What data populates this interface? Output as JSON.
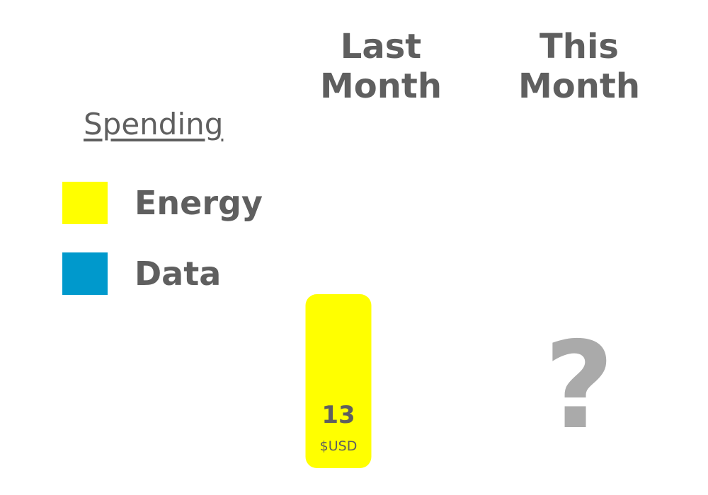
{
  "chart_data": {
    "type": "bar",
    "categories": [
      {
        "label_lines": [
          "Last",
          "Month"
        ]
      },
      {
        "label_lines": [
          "This",
          "Month"
        ]
      }
    ],
    "legend": {
      "title": "Spending",
      "placement": "left",
      "entries": [
        {
          "name": "Energy",
          "color": "#ffff00"
        },
        {
          "name": "Data",
          "color": "#0099cc"
        }
      ]
    },
    "series": [
      {
        "name": "Energy",
        "color": "#ffff00",
        "values": [
          13,
          null
        ]
      },
      {
        "name": "Data",
        "color": "#0099cc",
        "values": [
          0,
          null
        ]
      }
    ],
    "data_labels": [
      {
        "category_index": 0,
        "value_text": "13",
        "unit_text": "$USD"
      }
    ],
    "unknown_marker": {
      "category_index": 1,
      "text": "?",
      "color": "#aaaaaa"
    },
    "ylim": [
      0,
      13
    ],
    "grid": false,
    "axes_visible": false
  }
}
